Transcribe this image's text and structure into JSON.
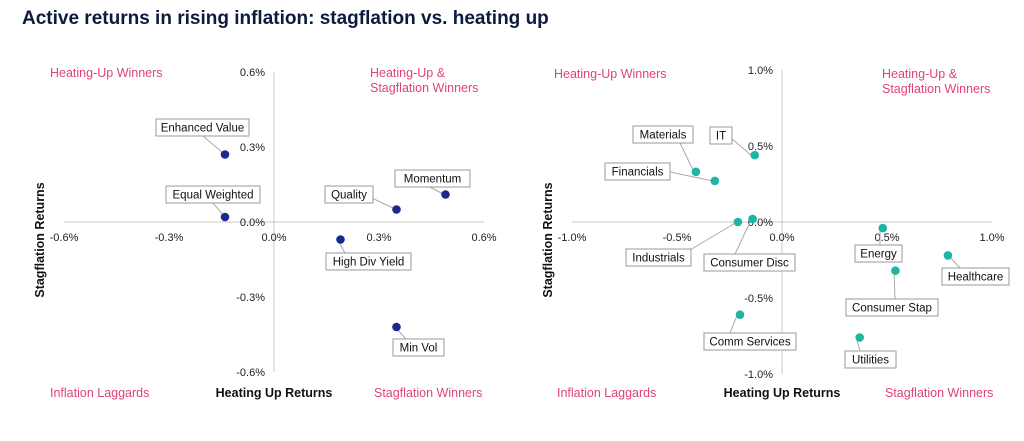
{
  "title": "Active returns in rising inflation: stagflation vs. heating up",
  "chart_data": [
    {
      "type": "scatter",
      "xlabel": "Heating Up Returns",
      "ylabel": "Stagflation Returns",
      "xlim": [
        -0.6,
        0.6
      ],
      "ylim": [
        -0.6,
        0.6
      ],
      "x_ticks": [
        "-0.6%",
        "-0.3%",
        "0.0%",
        "0.3%",
        "0.6%"
      ],
      "y_ticks": [
        "0.6%",
        "0.3%",
        "0.0%",
        "-0.3%",
        "-0.6%"
      ],
      "quadrants": {
        "top_left": [
          "Heating-Up Winners"
        ],
        "top_right": [
          "Heating-Up &",
          "Stagflation Winners"
        ],
        "bottom_left": [
          "Inflation Laggards"
        ],
        "bottom_right": [
          "Stagflation Winners"
        ]
      },
      "point_color": "#1a2a8c",
      "points": [
        {
          "name": "Enhanced Value",
          "x": -0.14,
          "y": 0.27
        },
        {
          "name": "Equal Weighted",
          "x": -0.14,
          "y": 0.02
        },
        {
          "name": "Quality",
          "x": 0.35,
          "y": 0.05
        },
        {
          "name": "Momentum",
          "x": 0.49,
          "y": 0.11
        },
        {
          "name": "High Div Yield",
          "x": 0.19,
          "y": -0.07
        },
        {
          "name": "Min Vol",
          "x": 0.35,
          "y": -0.42
        }
      ]
    },
    {
      "type": "scatter",
      "xlabel": "Heating Up Returns",
      "ylabel": "Stagflation Returns",
      "xlim": [
        -1.0,
        1.0
      ],
      "ylim": [
        -1.0,
        1.0
      ],
      "x_ticks": [
        "-1.0%",
        "-0.5%",
        "0.0%",
        "0.5%",
        "1.0%"
      ],
      "y_ticks": [
        "1.0%",
        "0.5%",
        "0.0%",
        "-0.5%",
        "-1.0%"
      ],
      "quadrants": {
        "top_left": [
          "Heating-Up Winners"
        ],
        "top_right": [
          "Heating-Up &",
          "Stagflation Winners"
        ],
        "bottom_left": [
          "Inflation Laggards"
        ],
        "bottom_right": [
          "Stagflation Winners"
        ]
      },
      "point_color": "#1fb5a5",
      "points": [
        {
          "name": "Materials",
          "x": -0.41,
          "y": 0.33
        },
        {
          "name": "IT",
          "x": -0.13,
          "y": 0.44
        },
        {
          "name": "Financials",
          "x": -0.32,
          "y": 0.27
        },
        {
          "name": "Industrials",
          "x": -0.21,
          "y": 0.0
        },
        {
          "name": "Consumer Disc",
          "x": -0.14,
          "y": 0.02
        },
        {
          "name": "Energy",
          "x": 0.48,
          "y": -0.04
        },
        {
          "name": "Healthcare",
          "x": 0.79,
          "y": -0.22
        },
        {
          "name": "Consumer Stap",
          "x": 0.54,
          "y": -0.32
        },
        {
          "name": "Comm Services",
          "x": -0.2,
          "y": -0.61
        },
        {
          "name": "Utilities",
          "x": 0.37,
          "y": -0.76
        }
      ]
    }
  ]
}
